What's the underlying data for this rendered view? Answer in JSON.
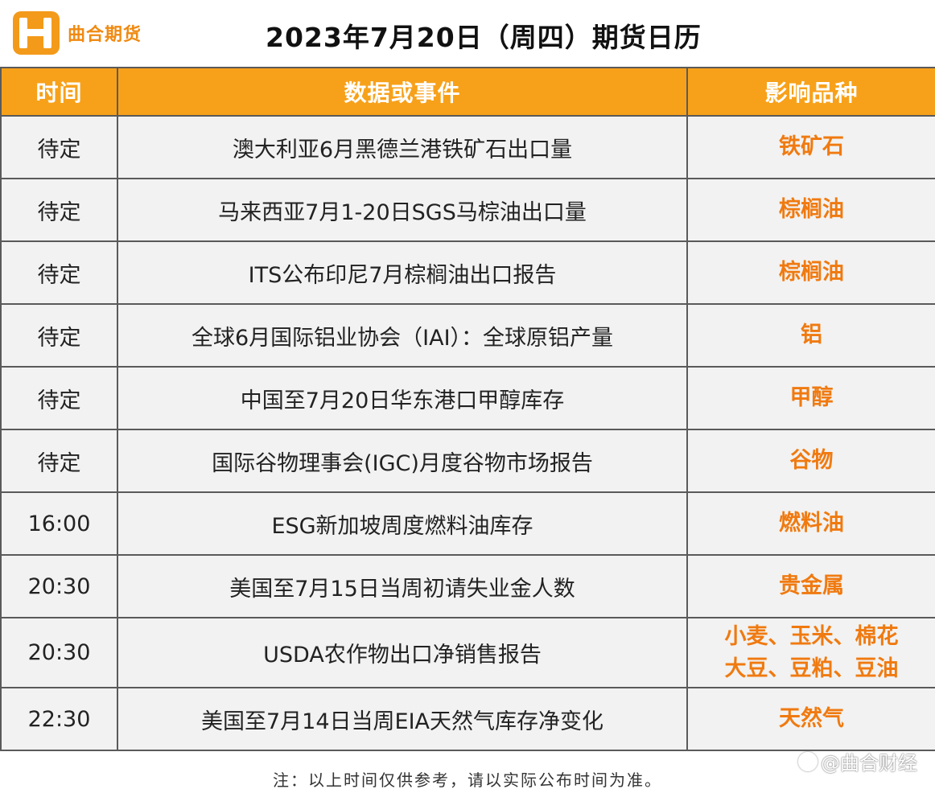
{
  "header": {
    "logo_text": "曲合期货",
    "title": "2023年7月20日（周四）期货日历"
  },
  "table": {
    "columns": [
      "时间",
      "数据或事件",
      "影响品种"
    ],
    "rows": [
      {
        "time": "待定",
        "event": "澳大利亚6月黑德兰港铁矿石出口量",
        "impact": "铁矿石"
      },
      {
        "time": "待定",
        "event": "马来西亚7月1-20日SGS马棕油出口量",
        "impact": "棕榈油"
      },
      {
        "time": "待定",
        "event": "ITS公布印尼7月棕榈油出口报告",
        "impact": "棕榈油"
      },
      {
        "time": "待定",
        "event": "全球6月国际铝业协会（IAI）：全球原铝产量",
        "impact": "铝"
      },
      {
        "time": "待定",
        "event": "中国至7月20日华东港口甲醇库存",
        "impact": "甲醇"
      },
      {
        "time": "待定",
        "event": "国际谷物理事会(IGC)月度谷物市场报告",
        "impact": "谷物"
      },
      {
        "time": "16:00",
        "event": "ESG新加坡周度燃料油库存",
        "impact": "燃料油"
      },
      {
        "time": "20:30",
        "event": "美国至7月15日当周初请失业金人数",
        "impact": "贵金属"
      },
      {
        "time": "20:30",
        "event": "USDA农作物出口净销售报告",
        "impact": "小麦、玉米、棉花",
        "impact2": "大豆、豆粕、豆油"
      },
      {
        "time": "22:30",
        "event": "美国至7月14日当周EIA天然气库存净变化",
        "impact": "天然气"
      }
    ]
  },
  "footnote": "注：以上时间仅供参考，请以实际公布时间为准。",
  "watermark": "@曲合财经",
  "colors": {
    "accent": "#f7a11a",
    "impact_text": "#f07a10",
    "cell_bg": "#f2f2f2"
  }
}
